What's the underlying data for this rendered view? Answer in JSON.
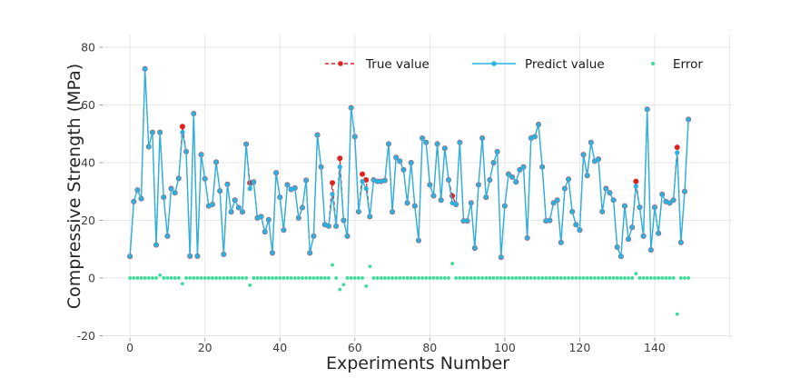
{
  "chart_data": {
    "type": "line",
    "title": "",
    "xlabel": "Experiments Number",
    "ylabel": "Compressive Strength (MPa)",
    "xlim": [
      -7.3,
      160.6
    ],
    "ylim": [
      -20.8,
      84.4
    ],
    "xticks": [
      0,
      20,
      40,
      60,
      80,
      100,
      120,
      140
    ],
    "xgrid": [
      0,
      20,
      40,
      60,
      80,
      100,
      120,
      140,
      160
    ],
    "yticks": [
      -20,
      0,
      20,
      40,
      60,
      80
    ],
    "grid": true,
    "legend_position": "upper center inside",
    "x_mode": "index",
    "colors": {
      "true": "#dd2420",
      "predict": "#2bb1e0",
      "error": "#3edc9b",
      "grid": "#e7e7e7",
      "tick_mark": "#9a9a9a",
      "tick_label": "#3d3d3d",
      "legend_text": "#1a1a1a",
      "background": "#ffffff"
    },
    "series": [
      {
        "name": "True value",
        "style": "dashed-line-marker",
        "color_key": "true",
        "values": [
          7.5,
          26.5,
          30.5,
          27.5,
          72.5,
          45.5,
          50.5,
          11.5,
          50.5,
          28,
          14.5,
          31,
          29.5,
          34.5,
          52.5,
          43.8,
          7.6,
          57,
          7.6,
          42.8,
          34.4,
          25,
          25.5,
          40.2,
          30.2,
          8.2,
          32.5,
          22.9,
          27,
          24.4,
          22.9,
          46.4,
          33,
          33.3,
          20.8,
          21.3,
          16,
          20.2,
          8.7,
          36.5,
          28,
          16.6,
          32.3,
          30.7,
          31.2,
          20.8,
          24.4,
          33.9,
          8.7,
          14.5,
          49.6,
          38.5,
          18.5,
          18,
          33,
          18,
          41.5,
          20,
          14.5,
          59,
          49,
          23,
          36,
          34,
          21.3,
          34,
          33.5,
          33.5,
          33.8,
          46.5,
          22.9,
          41.8,
          40.5,
          37.5,
          26,
          40,
          25,
          13,
          48.5,
          47,
          32.3,
          28.5,
          46.5,
          27,
          45,
          34,
          28.5,
          25.5,
          47,
          19.8,
          19.8,
          26,
          10.4,
          32.3,
          48.5,
          28,
          34,
          40,
          43.8,
          7.2,
          25,
          36,
          35,
          33.3,
          37.5,
          38.5,
          13.9,
          48.5,
          49,
          53.2,
          38.5,
          19.8,
          20,
          26,
          27,
          12.3,
          31,
          34.3,
          23,
          18.5,
          16.6,
          42.8,
          35.5,
          47,
          40.5,
          41.2,
          23,
          31,
          29.5,
          27,
          10.7,
          7.5,
          25,
          13.5,
          17.6,
          33.5,
          24.5,
          14.5,
          58.5,
          9.7,
          24.5,
          15.5,
          29,
          26.5,
          26,
          27,
          45.3,
          12.3,
          30,
          55
        ]
      },
      {
        "name": "Predict value",
        "style": "line-marker",
        "color_key": "predict",
        "values": [
          7.5,
          26.5,
          30.5,
          27.5,
          72.5,
          45.5,
          50.5,
          11.5,
          50.5,
          28,
          14.5,
          31,
          29.5,
          34.5,
          50.5,
          43.8,
          7.6,
          57,
          7.6,
          42.8,
          34.4,
          25,
          25.5,
          40.2,
          30.2,
          8.2,
          32.5,
          22.9,
          27,
          24.4,
          22.9,
          46.4,
          31,
          33.3,
          20.8,
          21.3,
          16,
          20.2,
          8.7,
          36.5,
          28,
          16.6,
          32.3,
          30.7,
          31.2,
          20.8,
          24.4,
          33.9,
          8.7,
          14.5,
          49.6,
          38.5,
          18.5,
          18,
          29.1,
          18,
          38.5,
          20,
          14.5,
          59,
          49,
          23,
          33.5,
          31,
          21.3,
          34,
          33.5,
          33.5,
          33.8,
          46.5,
          22.9,
          41.8,
          40.5,
          37.5,
          26,
          40,
          25,
          13,
          48.5,
          47,
          32.3,
          28.5,
          46.5,
          27,
          45,
          34,
          26,
          25.5,
          47,
          19.8,
          19.8,
          26,
          10.4,
          32.3,
          48.5,
          28,
          34,
          40,
          43.8,
          7.2,
          25,
          36,
          35,
          33.3,
          37.5,
          38.5,
          13.9,
          48.5,
          49,
          53.2,
          38.5,
          19.8,
          20,
          26,
          27,
          12.3,
          31,
          34.3,
          23,
          18.5,
          16.6,
          42.8,
          35.5,
          47,
          40.5,
          41.2,
          23,
          31,
          29.5,
          27,
          10.7,
          7.5,
          25,
          13.5,
          17.6,
          31.8,
          24.5,
          14.5,
          58.5,
          9.7,
          24.5,
          15.5,
          29,
          26.5,
          26,
          27,
          43.5,
          12.3,
          30,
          55
        ]
      },
      {
        "name": "Error",
        "style": "scatter",
        "color_key": "error",
        "values": [
          0,
          0,
          0,
          0,
          0,
          0,
          0,
          0,
          1,
          0,
          0,
          0,
          0,
          0,
          -2,
          0,
          0,
          0,
          0,
          0,
          0,
          0,
          0,
          0,
          0,
          0,
          0,
          0,
          0,
          0,
          0,
          0,
          -2.5,
          0,
          0,
          0,
          0,
          0,
          0,
          0,
          0,
          0,
          0,
          0,
          0,
          0,
          0,
          0,
          0,
          0,
          0,
          0,
          0,
          0,
          4.5,
          0,
          -4,
          -2.3,
          0,
          0,
          0,
          0,
          0,
          -2.8,
          4,
          0,
          0,
          0,
          0,
          0,
          0,
          0,
          0,
          0,
          0,
          0,
          0,
          0,
          0,
          0,
          0,
          0,
          0,
          0,
          0,
          0,
          5,
          0,
          0,
          0,
          0,
          0,
          0,
          0,
          0,
          0,
          0,
          0,
          0,
          0,
          0,
          0,
          0,
          0,
          0,
          0,
          0,
          0,
          0,
          0,
          0,
          0,
          0,
          0,
          0,
          0,
          0,
          0,
          0,
          0,
          0,
          0,
          0,
          0,
          0,
          0,
          0,
          0,
          0,
          0,
          0,
          0,
          0,
          0,
          0,
          1.5,
          0,
          0,
          0,
          0,
          0,
          0,
          0,
          0,
          0,
          0,
          -12.5,
          0,
          0,
          0
        ]
      }
    ]
  }
}
